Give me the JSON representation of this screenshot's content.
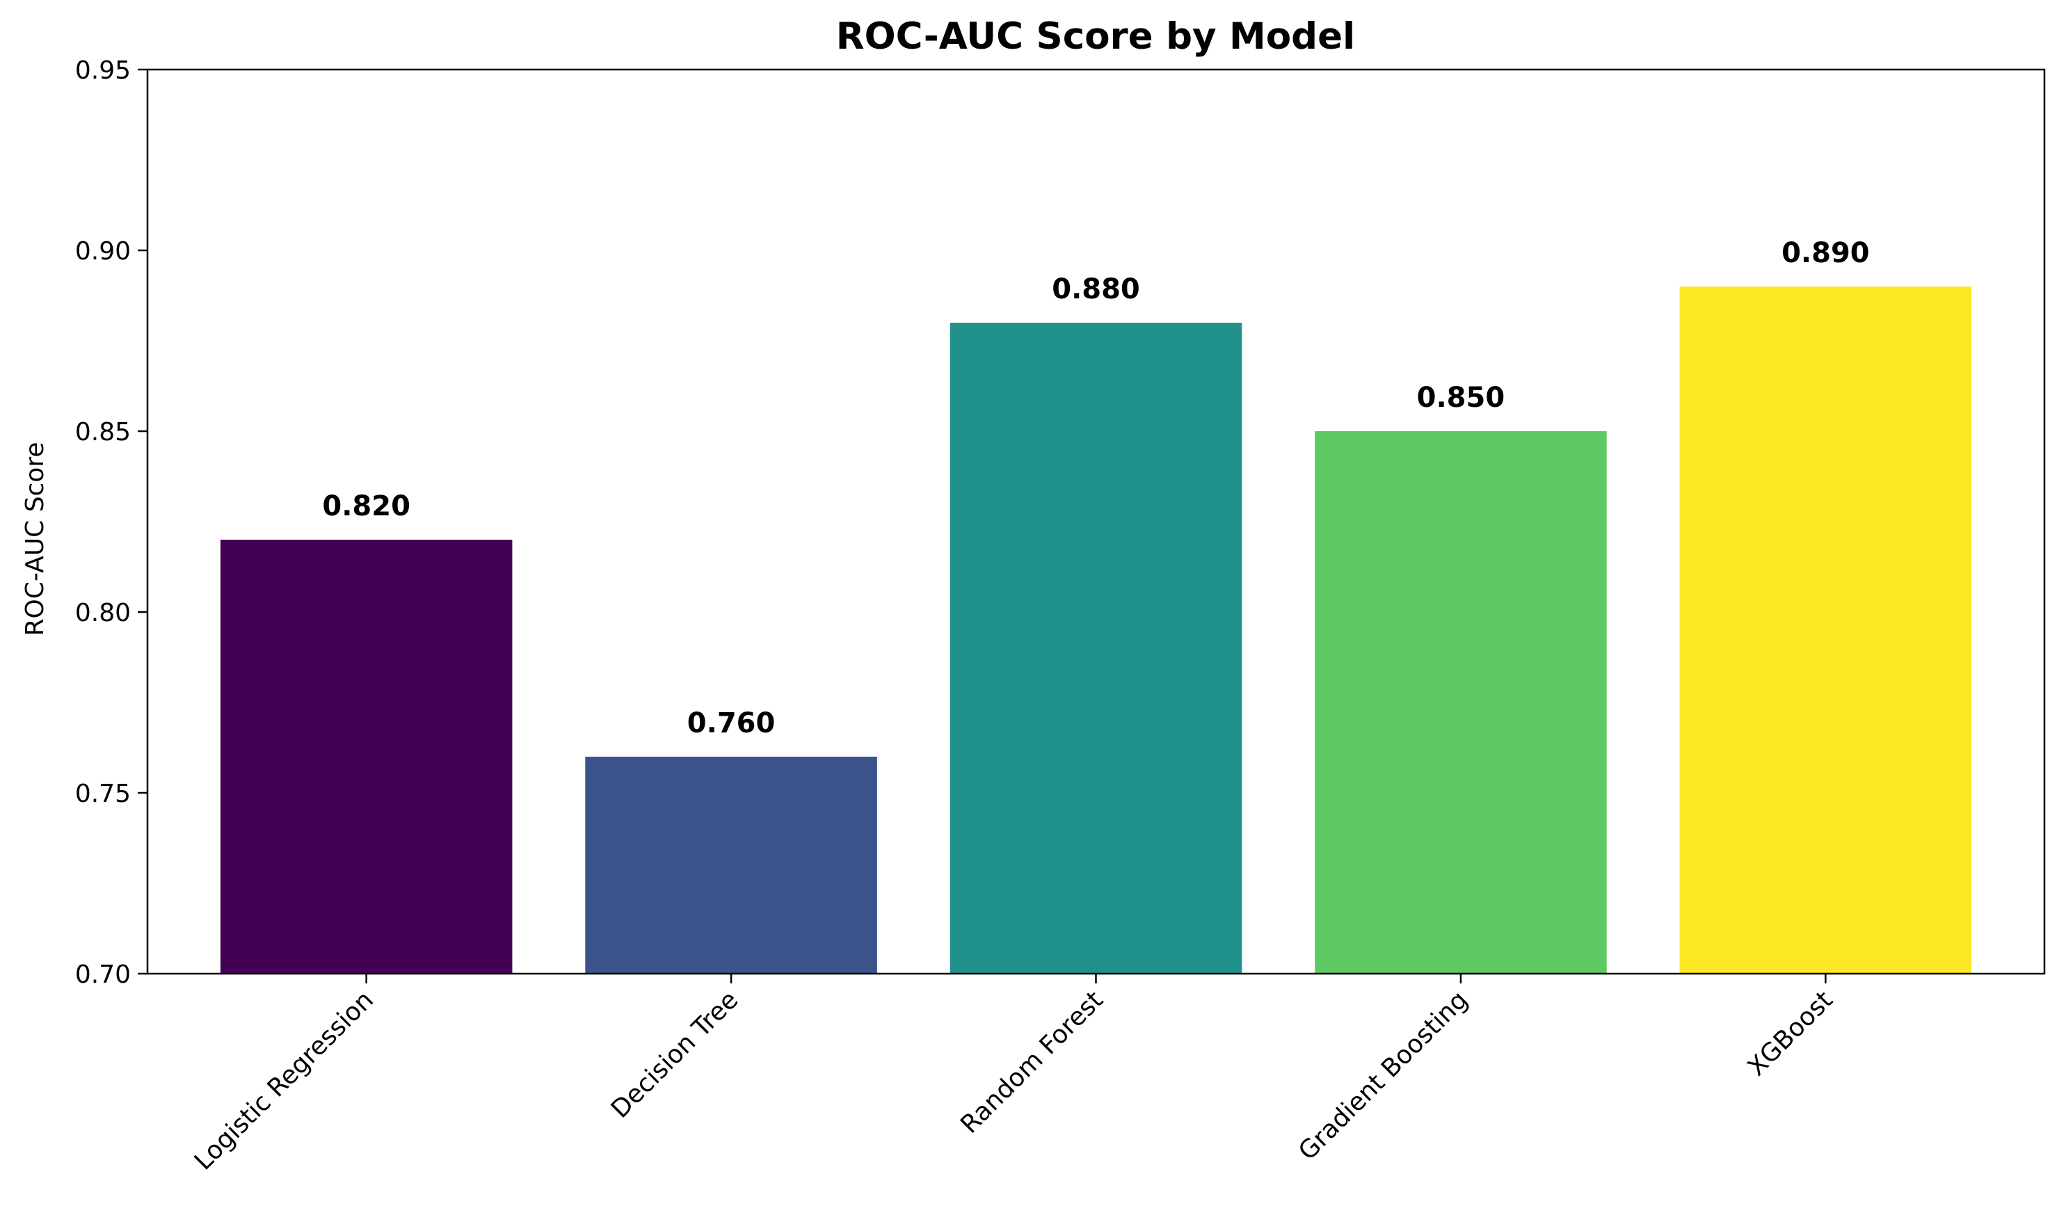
{
  "chart_data": {
    "type": "bar",
    "title": "ROC-AUC Score by Model",
    "xlabel": "",
    "ylabel": "ROC-AUC Score",
    "categories": [
      "Logistic Regression",
      "Decision Tree",
      "Random Forest",
      "Gradient Boosting",
      "XGBoost"
    ],
    "values": [
      0.82,
      0.76,
      0.88,
      0.85,
      0.89
    ],
    "data_labels": [
      "0.820",
      "0.760",
      "0.880",
      "0.850",
      "0.890"
    ],
    "colors": [
      "#440154",
      "#3b528b",
      "#21918c",
      "#5ec962",
      "#fde725"
    ],
    "ylim": [
      0.7,
      0.95
    ],
    "yticks": [
      0.7,
      0.75,
      0.8,
      0.85,
      0.9,
      0.95
    ],
    "ytick_labels": [
      "0.70",
      "0.75",
      "0.80",
      "0.85",
      "0.90",
      "0.95"
    ],
    "xtick_rotation": "45",
    "grid": false,
    "legend": "none"
  }
}
